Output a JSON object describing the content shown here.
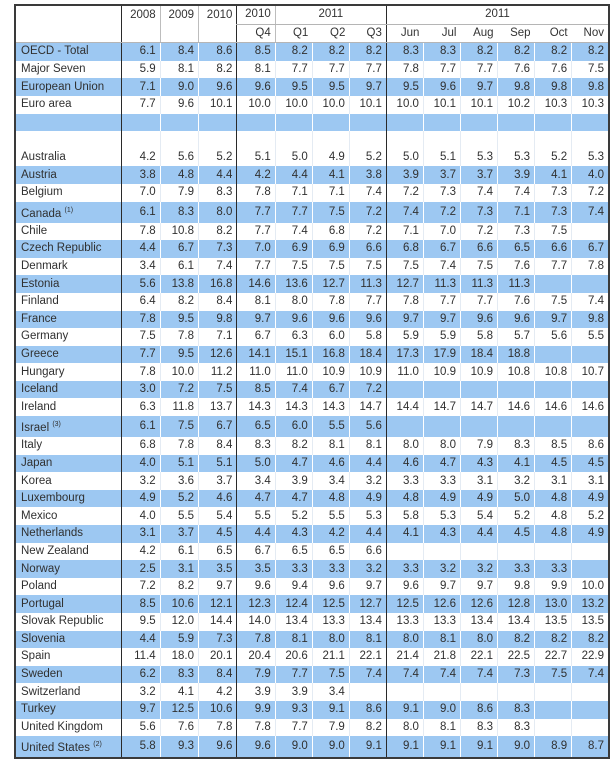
{
  "table": {
    "header": {
      "years": [
        "2008",
        "2009",
        "2010"
      ],
      "quarter_group_2010": "2010",
      "quarter_group_2011": "2011",
      "month_group_2011": "2011",
      "quarter_2010": [
        "Q4"
      ],
      "quarters_2011": [
        "Q1",
        "Q2",
        "Q3"
      ],
      "months_2011": [
        "Jun",
        "Jul",
        "Aug",
        "Sep",
        "Oct",
        "Nov"
      ]
    },
    "row_style": {
      "blue": "#9dc8f2",
      "white": "#ffffff"
    },
    "aggregates": [
      {
        "name": "OECD - Total",
        "note": "",
        "values": [
          "6.1",
          "8.4",
          "8.6",
          "8.5",
          "8.2",
          "8.2",
          "8.2",
          "8.3",
          "8.3",
          "8.2",
          "8.2",
          "8.2",
          "8.2"
        ]
      },
      {
        "name": "Major Seven",
        "note": "",
        "values": [
          "5.9",
          "8.1",
          "8.2",
          "8.1",
          "7.7",
          "7.7",
          "7.7",
          "7.8",
          "7.7",
          "7.7",
          "7.6",
          "7.6",
          "7.5"
        ]
      },
      {
        "name": "European Union",
        "note": "",
        "values": [
          "7.1",
          "9.0",
          "9.6",
          "9.6",
          "9.5",
          "9.5",
          "9.7",
          "9.5",
          "9.6",
          "9.7",
          "9.8",
          "9.8",
          "9.8"
        ]
      },
      {
        "name": "Euro area",
        "note": "",
        "values": [
          "7.7",
          "9.6",
          "10.1",
          "10.0",
          "10.0",
          "10.0",
          "10.1",
          "10.0",
          "10.1",
          "10.1",
          "10.2",
          "10.3",
          "10.3"
        ]
      }
    ],
    "countries": [
      {
        "name": "Australia",
        "note": "",
        "values": [
          "4.2",
          "5.6",
          "5.2",
          "5.1",
          "5.0",
          "4.9",
          "5.2",
          "5.0",
          "5.1",
          "5.3",
          "5.3",
          "5.2",
          "5.3"
        ]
      },
      {
        "name": "Austria",
        "note": "",
        "values": [
          "3.8",
          "4.8",
          "4.4",
          "4.2",
          "4.4",
          "4.1",
          "3.8",
          "3.9",
          "3.7",
          "3.7",
          "3.9",
          "4.1",
          "4.0"
        ]
      },
      {
        "name": "Belgium",
        "note": "",
        "values": [
          "7.0",
          "7.9",
          "8.3",
          "7.8",
          "7.1",
          "7.1",
          "7.4",
          "7.2",
          "7.3",
          "7.4",
          "7.4",
          "7.3",
          "7.2"
        ]
      },
      {
        "name": "Canada",
        "note": "(1)",
        "values": [
          "6.1",
          "8.3",
          "8.0",
          "7.7",
          "7.7",
          "7.5",
          "7.2",
          "7.4",
          "7.2",
          "7.3",
          "7.1",
          "7.3",
          "7.4"
        ]
      },
      {
        "name": "Chile",
        "note": "",
        "values": [
          "7.8",
          "10.8",
          "8.2",
          "7.7",
          "7.4",
          "6.8",
          "7.2",
          "7.1",
          "7.0",
          "7.2",
          "7.3",
          "7.5",
          ""
        ]
      },
      {
        "name": "Czech Republic",
        "note": "",
        "values": [
          "4.4",
          "6.7",
          "7.3",
          "7.0",
          "6.9",
          "6.9",
          "6.6",
          "6.8",
          "6.7",
          "6.6",
          "6.5",
          "6.6",
          "6.7"
        ]
      },
      {
        "name": "Denmark",
        "note": "",
        "values": [
          "3.4",
          "6.1",
          "7.4",
          "7.7",
          "7.5",
          "7.5",
          "7.5",
          "7.5",
          "7.4",
          "7.5",
          "7.6",
          "7.7",
          "7.8"
        ]
      },
      {
        "name": "Estonia",
        "note": "",
        "values": [
          "5.6",
          "13.8",
          "16.8",
          "14.6",
          "13.6",
          "12.7",
          "11.3",
          "12.7",
          "11.3",
          "11.3",
          "11.3",
          "",
          ""
        ]
      },
      {
        "name": "Finland",
        "note": "",
        "values": [
          "6.4",
          "8.2",
          "8.4",
          "8.1",
          "8.0",
          "7.8",
          "7.7",
          "7.8",
          "7.7",
          "7.7",
          "7.6",
          "7.5",
          "7.4"
        ]
      },
      {
        "name": "France",
        "note": "",
        "values": [
          "7.8",
          "9.5",
          "9.8",
          "9.7",
          "9.6",
          "9.6",
          "9.6",
          "9.7",
          "9.7",
          "9.6",
          "9.6",
          "9.7",
          "9.8"
        ]
      },
      {
        "name": "Germany",
        "note": "",
        "values": [
          "7.5",
          "7.8",
          "7.1",
          "6.7",
          "6.3",
          "6.0",
          "5.8",
          "5.9",
          "5.9",
          "5.8",
          "5.7",
          "5.6",
          "5.5"
        ]
      },
      {
        "name": "Greece",
        "note": "",
        "values": [
          "7.7",
          "9.5",
          "12.6",
          "14.1",
          "15.1",
          "16.8",
          "18.4",
          "17.3",
          "17.9",
          "18.4",
          "18.8",
          "",
          ""
        ]
      },
      {
        "name": "Hungary",
        "note": "",
        "values": [
          "7.8",
          "10.0",
          "11.2",
          "11.0",
          "11.0",
          "10.9",
          "10.9",
          "11.0",
          "10.9",
          "10.9",
          "10.8",
          "10.8",
          "10.7"
        ]
      },
      {
        "name": "Iceland",
        "note": "",
        "values": [
          "3.0",
          "7.2",
          "7.5",
          "8.5",
          "7.4",
          "6.7",
          "7.2",
          "",
          "",
          "",
          "",
          "",
          ""
        ]
      },
      {
        "name": "Ireland",
        "note": "",
        "values": [
          "6.3",
          "11.8",
          "13.7",
          "14.3",
          "14.3",
          "14.3",
          "14.7",
          "14.4",
          "14.7",
          "14.7",
          "14.6",
          "14.6",
          "14.6"
        ]
      },
      {
        "name": "Israel",
        "note": "(3)",
        "values": [
          "6.1",
          "7.5",
          "6.7",
          "6.5",
          "6.0",
          "5.5",
          "5.6",
          "",
          "",
          "",
          "",
          "",
          ""
        ]
      },
      {
        "name": "Italy",
        "note": "",
        "values": [
          "6.8",
          "7.8",
          "8.4",
          "8.3",
          "8.2",
          "8.1",
          "8.1",
          "8.0",
          "8.0",
          "7.9",
          "8.3",
          "8.5",
          "8.6"
        ]
      },
      {
        "name": "Japan",
        "note": "",
        "values": [
          "4.0",
          "5.1",
          "5.1",
          "5.0",
          "4.7",
          "4.6",
          "4.4",
          "4.6",
          "4.7",
          "4.3",
          "4.1",
          "4.5",
          "4.5"
        ]
      },
      {
        "name": "Korea",
        "note": "",
        "values": [
          "3.2",
          "3.6",
          "3.7",
          "3.4",
          "3.9",
          "3.4",
          "3.2",
          "3.3",
          "3.3",
          "3.1",
          "3.2",
          "3.1",
          "3.1"
        ]
      },
      {
        "name": "Luxembourg",
        "note": "",
        "values": [
          "4.9",
          "5.2",
          "4.6",
          "4.7",
          "4.7",
          "4.8",
          "4.9",
          "4.8",
          "4.9",
          "4.9",
          "5.0",
          "4.8",
          "4.9"
        ]
      },
      {
        "name": "Mexico",
        "note": "",
        "values": [
          "4.0",
          "5.5",
          "5.4",
          "5.5",
          "5.2",
          "5.5",
          "5.3",
          "5.8",
          "5.3",
          "5.4",
          "5.2",
          "4.8",
          "5.2"
        ]
      },
      {
        "name": "Netherlands",
        "note": "",
        "values": [
          "3.1",
          "3.7",
          "4.5",
          "4.4",
          "4.3",
          "4.2",
          "4.4",
          "4.1",
          "4.3",
          "4.4",
          "4.5",
          "4.8",
          "4.9"
        ]
      },
      {
        "name": "New Zealand",
        "note": "",
        "values": [
          "4.2",
          "6.1",
          "6.5",
          "6.7",
          "6.5",
          "6.5",
          "6.6",
          "",
          "",
          "",
          "",
          "",
          ""
        ]
      },
      {
        "name": "Norway",
        "note": "",
        "values": [
          "2.5",
          "3.1",
          "3.5",
          "3.5",
          "3.3",
          "3.3",
          "3.2",
          "3.3",
          "3.2",
          "3.2",
          "3.3",
          "3.3",
          ""
        ]
      },
      {
        "name": "Poland",
        "note": "",
        "values": [
          "7.2",
          "8.2",
          "9.7",
          "9.6",
          "9.4",
          "9.6",
          "9.7",
          "9.6",
          "9.7",
          "9.7",
          "9.8",
          "9.9",
          "10.0"
        ]
      },
      {
        "name": "Portugal",
        "note": "",
        "values": [
          "8.5",
          "10.6",
          "12.1",
          "12.3",
          "12.4",
          "12.5",
          "12.7",
          "12.5",
          "12.6",
          "12.6",
          "12.8",
          "13.0",
          "13.2"
        ]
      },
      {
        "name": "Slovak Republic",
        "note": "",
        "values": [
          "9.5",
          "12.0",
          "14.4",
          "14.0",
          "13.4",
          "13.3",
          "13.4",
          "13.3",
          "13.3",
          "13.4",
          "13.4",
          "13.5",
          "13.5"
        ]
      },
      {
        "name": "Slovenia",
        "note": "",
        "values": [
          "4.4",
          "5.9",
          "7.3",
          "7.8",
          "8.1",
          "8.0",
          "8.1",
          "8.0",
          "8.1",
          "8.0",
          "8.2",
          "8.2",
          "8.2"
        ]
      },
      {
        "name": "Spain",
        "note": "",
        "values": [
          "11.4",
          "18.0",
          "20.1",
          "20.4",
          "20.6",
          "21.1",
          "22.1",
          "21.4",
          "21.8",
          "22.1",
          "22.5",
          "22.7",
          "22.9"
        ]
      },
      {
        "name": "Sweden",
        "note": "",
        "values": [
          "6.2",
          "8.3",
          "8.4",
          "7.9",
          "7.7",
          "7.5",
          "7.4",
          "7.4",
          "7.4",
          "7.4",
          "7.3",
          "7.5",
          "7.4"
        ]
      },
      {
        "name": "Switzerland",
        "note": "",
        "values": [
          "3.2",
          "4.1",
          "4.2",
          "3.9",
          "3.9",
          "3.4",
          "",
          "",
          "",
          "",
          "",
          "",
          ""
        ]
      },
      {
        "name": "Turkey",
        "note": "",
        "values": [
          "9.7",
          "12.5",
          "10.6",
          "9.9",
          "9.3",
          "9.1",
          "8.6",
          "9.1",
          "9.0",
          "8.6",
          "8.3",
          "",
          ""
        ]
      },
      {
        "name": "United Kingdom",
        "note": "",
        "values": [
          "5.6",
          "7.6",
          "7.8",
          "7.8",
          "7.7",
          "7.9",
          "8.2",
          "8.0",
          "8.1",
          "8.3",
          "8.3",
          "",
          ""
        ]
      },
      {
        "name": "United States",
        "note": "(2)",
        "values": [
          "5.8",
          "9.3",
          "9.6",
          "9.6",
          "9.0",
          "9.0",
          "9.1",
          "9.1",
          "9.1",
          "9.1",
          "9.0",
          "8.9",
          "8.7"
        ]
      }
    ]
  }
}
